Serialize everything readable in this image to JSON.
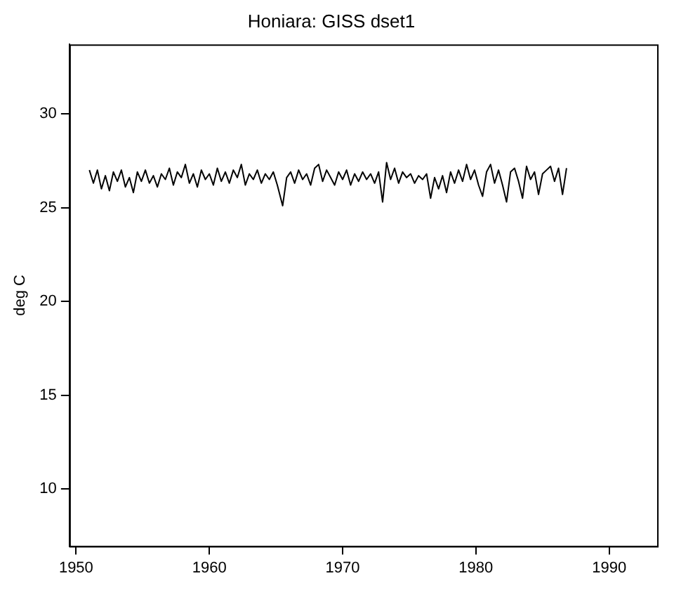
{
  "chart_data": {
    "type": "line",
    "title": "Honiara: GISS dset1",
    "ylabel": "deg C",
    "x": [
      1951.0,
      1951.3,
      1951.6,
      1951.9,
      1952.2,
      1952.5,
      1952.8,
      1953.1,
      1953.4,
      1953.7,
      1954.0,
      1954.3,
      1954.6,
      1954.9,
      1955.2,
      1955.5,
      1955.8,
      1956.1,
      1956.4,
      1956.7,
      1957.0,
      1957.3,
      1957.6,
      1957.9,
      1958.2,
      1958.5,
      1958.8,
      1959.1,
      1959.4,
      1959.7,
      1960.0,
      1960.3,
      1960.6,
      1960.9,
      1961.2,
      1961.5,
      1961.8,
      1962.1,
      1962.4,
      1962.7,
      1963.0,
      1963.3,
      1963.6,
      1963.9,
      1964.2,
      1964.5,
      1964.8,
      1965.1,
      1965.5,
      1965.8,
      1966.1,
      1966.4,
      1966.7,
      1967.0,
      1967.3,
      1967.6,
      1967.9,
      1968.2,
      1968.5,
      1968.8,
      1969.1,
      1969.4,
      1969.7,
      1970.0,
      1970.3,
      1970.6,
      1970.9,
      1971.2,
      1971.5,
      1971.8,
      1972.1,
      1972.4,
      1972.7,
      1973.0,
      1973.3,
      1973.6,
      1973.9,
      1974.2,
      1974.5,
      1974.8,
      1975.1,
      1975.4,
      1975.7,
      1976.0,
      1976.3,
      1976.6,
      1976.9,
      1977.2,
      1977.5,
      1977.8,
      1978.1,
      1978.4,
      1978.7,
      1979.0,
      1979.3,
      1979.6,
      1979.9,
      1980.2,
      1980.5,
      1980.8,
      1981.1,
      1981.4,
      1981.7,
      1982.0,
      1982.3,
      1982.6,
      1982.9,
      1983.2,
      1983.5,
      1983.8,
      1984.1,
      1984.4,
      1984.7,
      1985.0,
      1985.3,
      1985.6,
      1985.9,
      1986.2,
      1986.5,
      1986.8
    ],
    "series": [
      {
        "color": "#000000",
        "values": [
          27.0,
          26.3,
          27.0,
          26.0,
          26.7,
          25.9,
          26.9,
          26.4,
          27.0,
          26.1,
          26.6,
          25.8,
          26.9,
          26.4,
          27.0,
          26.3,
          26.7,
          26.1,
          26.8,
          26.5,
          27.1,
          26.2,
          26.9,
          26.6,
          27.3,
          26.3,
          26.8,
          26.1,
          27.0,
          26.5,
          26.8,
          26.2,
          27.1,
          26.4,
          26.9,
          26.3,
          27.0,
          26.6,
          27.3,
          26.2,
          26.8,
          26.5,
          27.0,
          26.3,
          26.8,
          26.5,
          26.9,
          26.2,
          25.1,
          26.6,
          26.9,
          26.3,
          27.0,
          26.5,
          26.8,
          26.2,
          27.1,
          27.3,
          26.4,
          27.0,
          26.6,
          26.2,
          26.9,
          26.5,
          27.0,
          26.2,
          26.8,
          26.4,
          26.9,
          26.5,
          26.8,
          26.3,
          26.9,
          25.3,
          27.4,
          26.5,
          27.1,
          26.3,
          26.9,
          26.6,
          26.8,
          26.3,
          26.7,
          26.5,
          26.8,
          25.5,
          26.6,
          26.0,
          26.7,
          25.8,
          26.9,
          26.3,
          27.0,
          26.4,
          27.3,
          26.5,
          27.0,
          26.2,
          25.6,
          26.9,
          27.3,
          26.3,
          27.0,
          26.2,
          25.3,
          26.9,
          27.1,
          26.4,
          25.5,
          27.2,
          26.5,
          26.9,
          25.7,
          26.8,
          27.0,
          27.2,
          26.4,
          27.1,
          25.7,
          27.1
        ]
      }
    ],
    "xlim": [
      1949.5,
      1993.6
    ],
    "xticks": [
      1950,
      1960,
      1970,
      1980,
      1990
    ],
    "ylim": [
      6.95,
      33.7
    ],
    "yticks": [
      10,
      15,
      20,
      25,
      30
    ],
    "grid": false,
    "legend": false
  }
}
